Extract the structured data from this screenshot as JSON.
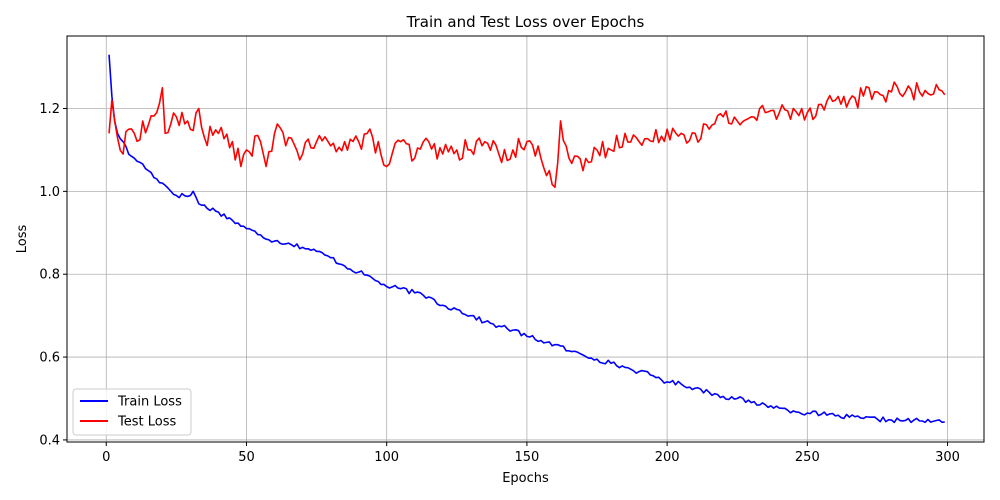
{
  "chart_data": {
    "type": "line",
    "title": "Train and Test Loss over Epochs",
    "xlabel": "Epochs",
    "ylabel": "Loss",
    "xlim": [
      -14,
      313
    ],
    "ylim": [
      0.395,
      1.375
    ],
    "xticks": [
      0,
      50,
      100,
      150,
      200,
      250,
      300
    ],
    "yticks": [
      0.4,
      0.6,
      0.8,
      1.0,
      1.2
    ],
    "grid": true,
    "legend_position": "lower-left",
    "x_range": [
      1,
      299
    ],
    "series": [
      {
        "name": "Train Loss",
        "color": "#0000ff",
        "anchors": [
          [
            1,
            1.33
          ],
          [
            2,
            1.23
          ],
          [
            3,
            1.17
          ],
          [
            4,
            1.14
          ],
          [
            6,
            1.12
          ],
          [
            8,
            1.09
          ],
          [
            10,
            1.08
          ],
          [
            12,
            1.07
          ],
          [
            15,
            1.05
          ],
          [
            18,
            1.03
          ],
          [
            20,
            1.02
          ],
          [
            25,
            0.99
          ],
          [
            30,
            0.99
          ],
          [
            31,
            1.0
          ],
          [
            33,
            0.97
          ],
          [
            40,
            0.95
          ],
          [
            45,
            0.93
          ],
          [
            50,
            0.91
          ],
          [
            55,
            0.895
          ],
          [
            60,
            0.88
          ],
          [
            65,
            0.875
          ],
          [
            70,
            0.865
          ],
          [
            75,
            0.855
          ],
          [
            80,
            0.84
          ],
          [
            85,
            0.82
          ],
          [
            90,
            0.805
          ],
          [
            95,
            0.79
          ],
          [
            100,
            0.77
          ],
          [
            105,
            0.765
          ],
          [
            110,
            0.755
          ],
          [
            115,
            0.745
          ],
          [
            120,
            0.725
          ],
          [
            125,
            0.715
          ],
          [
            130,
            0.7
          ],
          [
            135,
            0.685
          ],
          [
            140,
            0.675
          ],
          [
            145,
            0.665
          ],
          [
            150,
            0.65
          ],
          [
            155,
            0.64
          ],
          [
            160,
            0.63
          ],
          [
            165,
            0.615
          ],
          [
            170,
            0.605
          ],
          [
            175,
            0.595
          ],
          [
            180,
            0.585
          ],
          [
            185,
            0.575
          ],
          [
            190,
            0.565
          ],
          [
            195,
            0.555
          ],
          [
            200,
            0.54
          ],
          [
            205,
            0.535
          ],
          [
            210,
            0.525
          ],
          [
            215,
            0.515
          ],
          [
            220,
            0.505
          ],
          [
            225,
            0.5
          ],
          [
            230,
            0.49
          ],
          [
            235,
            0.485
          ],
          [
            240,
            0.477
          ],
          [
            245,
            0.47
          ],
          [
            250,
            0.465
          ],
          [
            255,
            0.462
          ],
          [
            260,
            0.458
          ],
          [
            265,
            0.455
          ],
          [
            270,
            0.452
          ],
          [
            275,
            0.45
          ],
          [
            280,
            0.448
          ],
          [
            285,
            0.447
          ],
          [
            290,
            0.446
          ],
          [
            295,
            0.445
          ],
          [
            299,
            0.443
          ]
        ],
        "noise": 0.006
      },
      {
        "name": "Test Loss",
        "color": "#ff0000",
        "anchors": [
          [
            1,
            1.14
          ],
          [
            2,
            1.22
          ],
          [
            3,
            1.17
          ],
          [
            4,
            1.13
          ],
          [
            6,
            1.09
          ],
          [
            8,
            1.15
          ],
          [
            10,
            1.14
          ],
          [
            15,
            1.16
          ],
          [
            18,
            1.19
          ],
          [
            20,
            1.25
          ],
          [
            21,
            1.14
          ],
          [
            25,
            1.18
          ],
          [
            30,
            1.15
          ],
          [
            33,
            1.2
          ],
          [
            35,
            1.13
          ],
          [
            40,
            1.14
          ],
          [
            45,
            1.12
          ],
          [
            48,
            1.06
          ],
          [
            50,
            1.1
          ],
          [
            55,
            1.12
          ],
          [
            57,
            1.06
          ],
          [
            60,
            1.14
          ],
          [
            65,
            1.13
          ],
          [
            70,
            1.09
          ],
          [
            75,
            1.12
          ],
          [
            80,
            1.11
          ],
          [
            85,
            1.12
          ],
          [
            90,
            1.12
          ],
          [
            95,
            1.13
          ],
          [
            100,
            1.06
          ],
          [
            105,
            1.12
          ],
          [
            110,
            1.08
          ],
          [
            115,
            1.12
          ],
          [
            120,
            1.09
          ],
          [
            125,
            1.1
          ],
          [
            130,
            1.1
          ],
          [
            135,
            1.12
          ],
          [
            140,
            1.09
          ],
          [
            145,
            1.1
          ],
          [
            150,
            1.12
          ],
          [
            155,
            1.08
          ],
          [
            158,
            1.05
          ],
          [
            160,
            1.01
          ],
          [
            162,
            1.17
          ],
          [
            165,
            1.08
          ],
          [
            170,
            1.05
          ],
          [
            175,
            1.1
          ],
          [
            180,
            1.1
          ],
          [
            185,
            1.14
          ],
          [
            190,
            1.12
          ],
          [
            195,
            1.12
          ],
          [
            200,
            1.15
          ],
          [
            205,
            1.14
          ],
          [
            210,
            1.14
          ],
          [
            215,
            1.15
          ],
          [
            220,
            1.18
          ],
          [
            225,
            1.17
          ],
          [
            230,
            1.18
          ],
          [
            235,
            1.19
          ],
          [
            240,
            1.19
          ],
          [
            245,
            1.2
          ],
          [
            250,
            1.19
          ],
          [
            255,
            1.21
          ],
          [
            260,
            1.22
          ],
          [
            265,
            1.22
          ],
          [
            270,
            1.23
          ],
          [
            275,
            1.24
          ],
          [
            280,
            1.24
          ],
          [
            285,
            1.24
          ],
          [
            290,
            1.24
          ],
          [
            295,
            1.235
          ],
          [
            299,
            1.233
          ]
        ],
        "noise": 0.025
      }
    ]
  }
}
